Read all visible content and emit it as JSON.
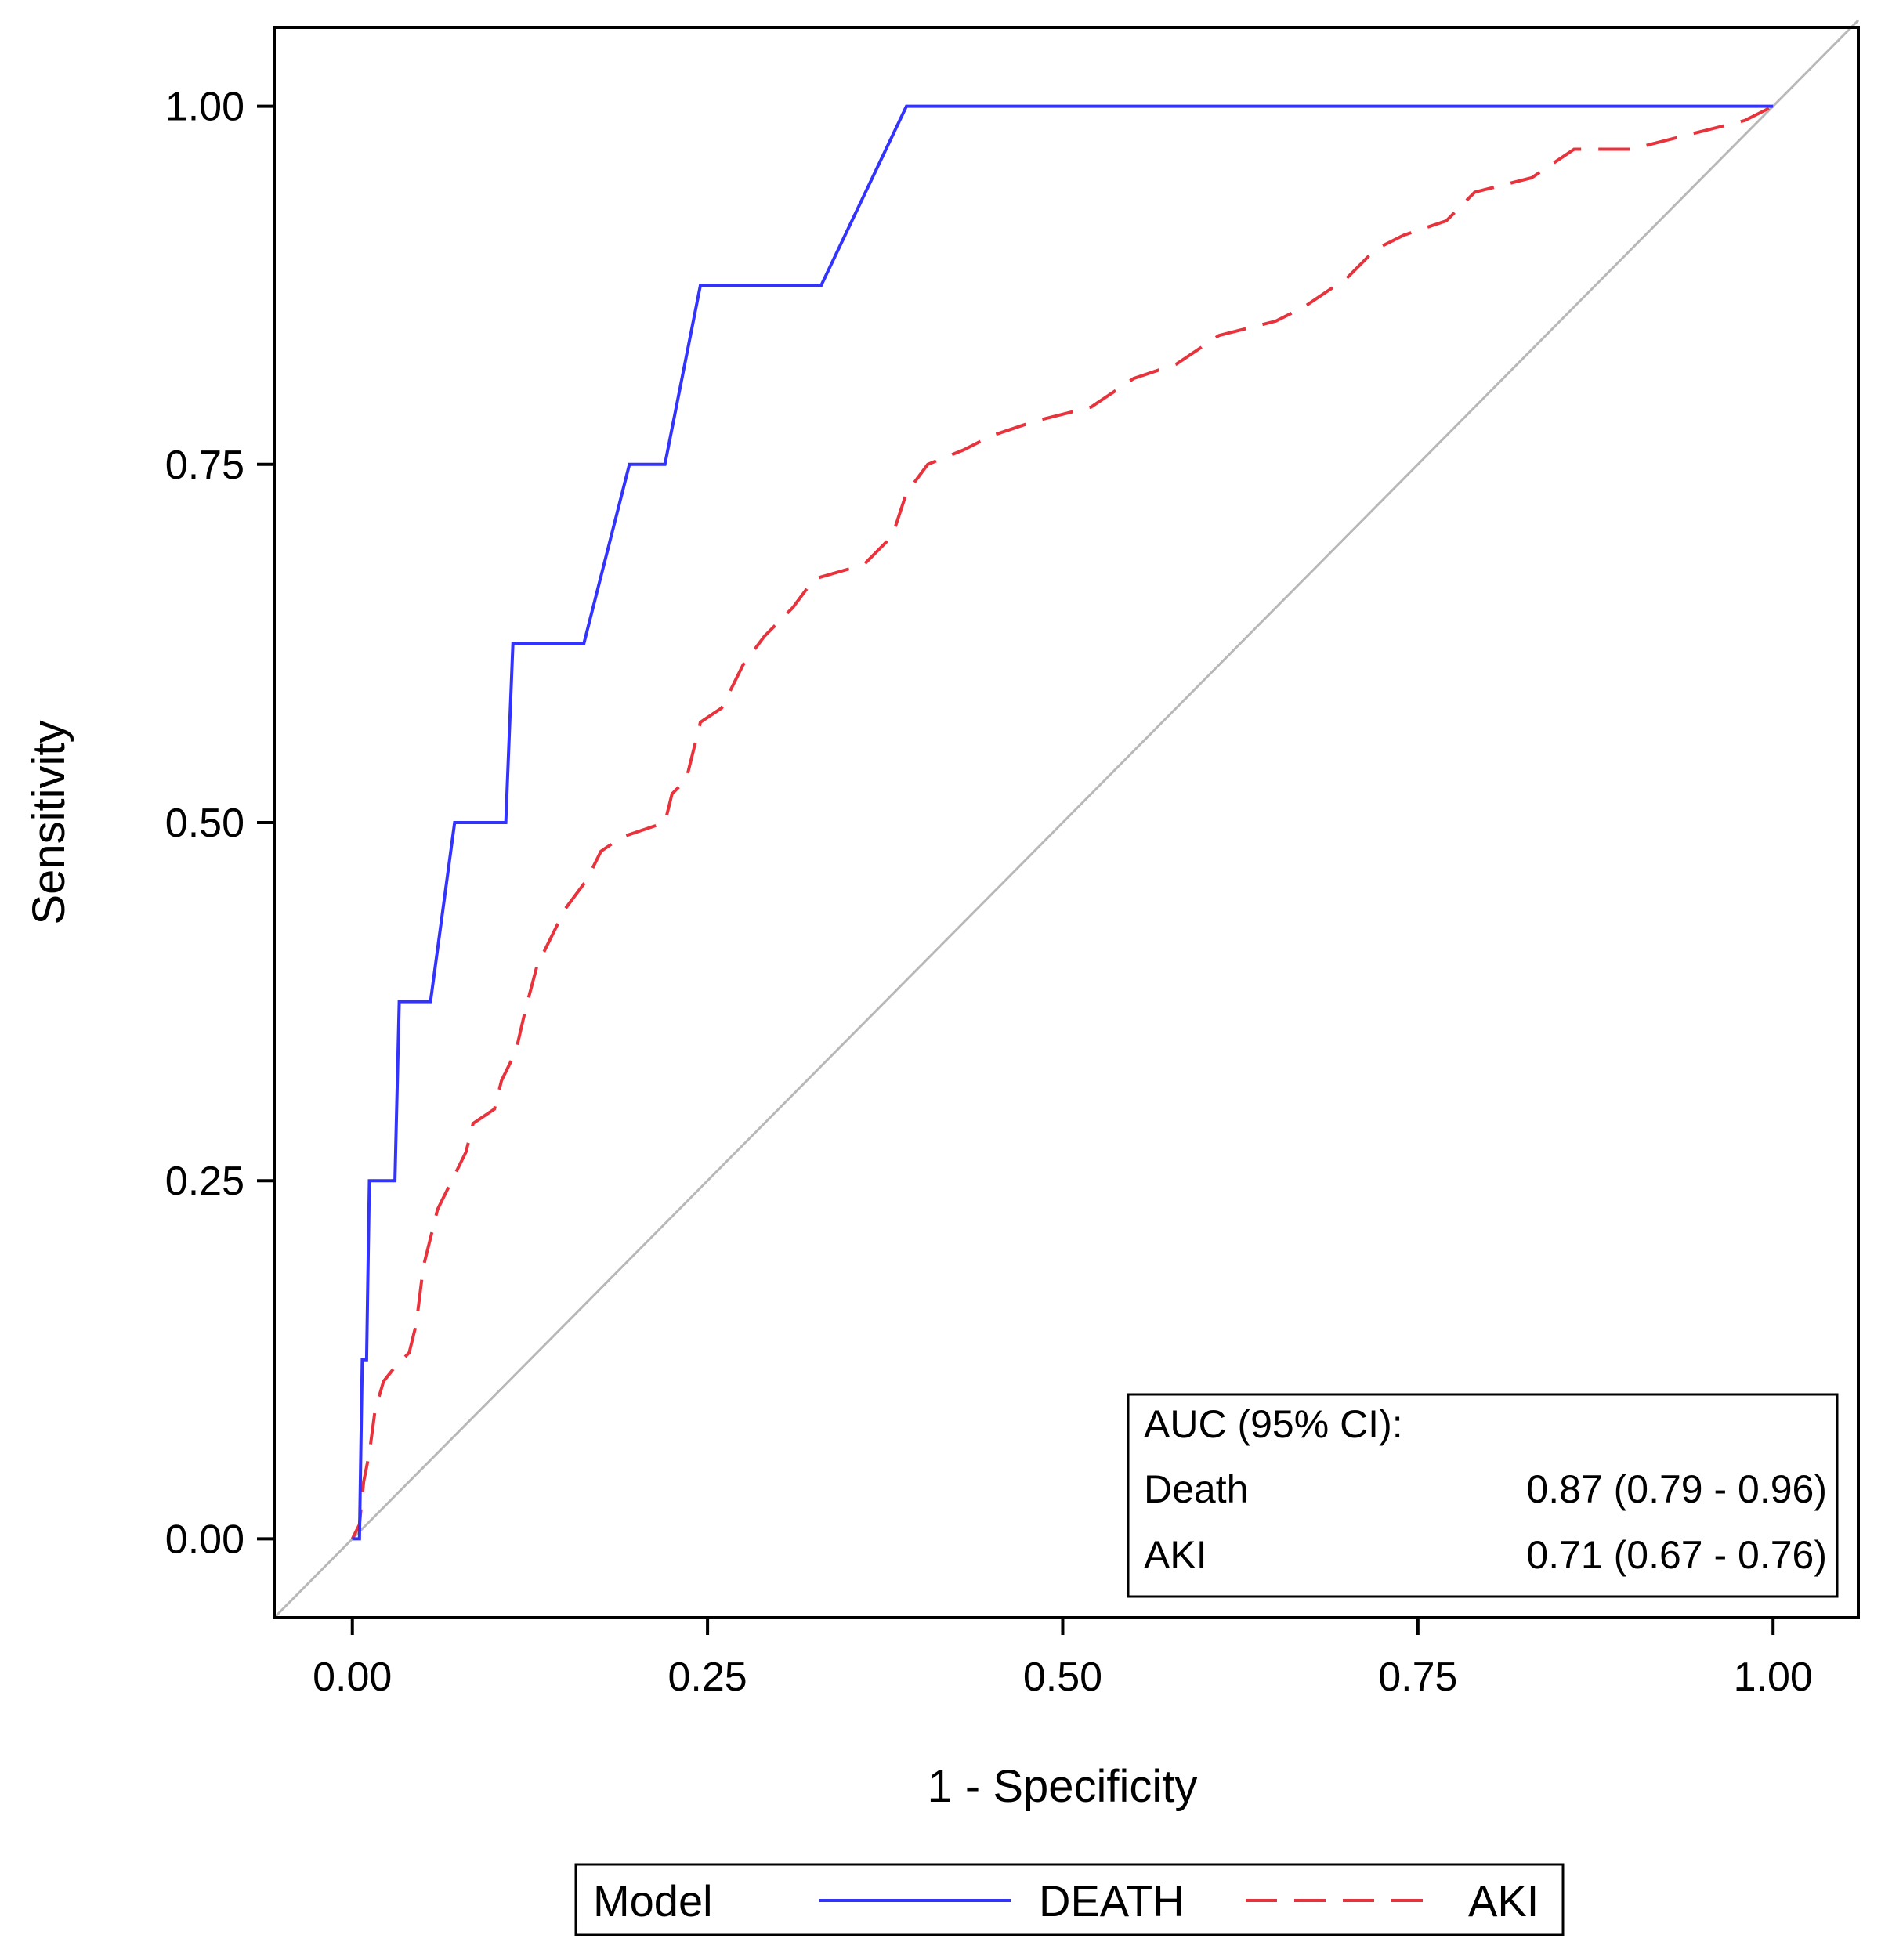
{
  "colors": {
    "death": "#3333ff",
    "aki": "#e8323c",
    "reference": "#b8b8b8",
    "axis": "#000000",
    "background": "#ffffff"
  },
  "chart_data": {
    "type": "line",
    "title": "",
    "xlabel": "1 - Specificity",
    "ylabel": "Sensitivity",
    "xlim": [
      -0.055,
      1.06
    ],
    "ylim": [
      -0.055,
      1.055
    ],
    "xticks": [
      0,
      0.25,
      0.5,
      0.75,
      1
    ],
    "yticks": [
      0,
      0.25,
      0.5,
      0.75,
      1
    ],
    "xtick_labels": [
      "0.00",
      "0.25",
      "0.50",
      "0.75",
      "1.00"
    ],
    "ytick_labels": [
      "0.00",
      "0.25",
      "0.50",
      "0.75",
      "1.00"
    ],
    "grid": false,
    "series": [
      {
        "name": "DEATH",
        "style": "solid",
        "points": [
          [
            0,
            0
          ],
          [
            0.005,
            0
          ],
          [
            0.007,
            0.125
          ],
          [
            0.01,
            0.125
          ],
          [
            0.012,
            0.25
          ],
          [
            0.03,
            0.25
          ],
          [
            0.033,
            0.375
          ],
          [
            0.055,
            0.375
          ],
          [
            0.072,
            0.5
          ],
          [
            0.108,
            0.5
          ],
          [
            0.113,
            0.625
          ],
          [
            0.163,
            0.625
          ],
          [
            0.195,
            0.75
          ],
          [
            0.22,
            0.75
          ],
          [
            0.245,
            0.875
          ],
          [
            0.33,
            0.875
          ],
          [
            0.39,
            1
          ],
          [
            1,
            1
          ]
        ]
      },
      {
        "name": "AKI",
        "style": "dashed",
        "points": [
          [
            0,
            0
          ],
          [
            0.005,
            0.01
          ],
          [
            0.008,
            0.04
          ],
          [
            0.012,
            0.06
          ],
          [
            0.016,
            0.09
          ],
          [
            0.022,
            0.11
          ],
          [
            0.03,
            0.12
          ],
          [
            0.04,
            0.13
          ],
          [
            0.045,
            0.15
          ],
          [
            0.05,
            0.19
          ],
          [
            0.055,
            0.21
          ],
          [
            0.06,
            0.23
          ],
          [
            0.07,
            0.25
          ],
          [
            0.08,
            0.27
          ],
          [
            0.085,
            0.29
          ],
          [
            0.1,
            0.3
          ],
          [
            0.105,
            0.32
          ],
          [
            0.115,
            0.34
          ],
          [
            0.122,
            0.37
          ],
          [
            0.13,
            0.4
          ],
          [
            0.14,
            0.42
          ],
          [
            0.15,
            0.44
          ],
          [
            0.165,
            0.46
          ],
          [
            0.175,
            0.48
          ],
          [
            0.19,
            0.49
          ],
          [
            0.22,
            0.5
          ],
          [
            0.225,
            0.52
          ],
          [
            0.235,
            0.53
          ],
          [
            0.245,
            0.57
          ],
          [
            0.26,
            0.58
          ],
          [
            0.275,
            0.61
          ],
          [
            0.29,
            0.63
          ],
          [
            0.31,
            0.65
          ],
          [
            0.325,
            0.67
          ],
          [
            0.36,
            0.68
          ],
          [
            0.38,
            0.7
          ],
          [
            0.39,
            0.73
          ],
          [
            0.405,
            0.75
          ],
          [
            0.43,
            0.76
          ],
          [
            0.45,
            0.77
          ],
          [
            0.48,
            0.78
          ],
          [
            0.52,
            0.79
          ],
          [
            0.55,
            0.81
          ],
          [
            0.58,
            0.82
          ],
          [
            0.61,
            0.84
          ],
          [
            0.65,
            0.85
          ],
          [
            0.67,
            0.86
          ],
          [
            0.7,
            0.88
          ],
          [
            0.72,
            0.9
          ],
          [
            0.74,
            0.91
          ],
          [
            0.77,
            0.92
          ],
          [
            0.79,
            0.94
          ],
          [
            0.83,
            0.95
          ],
          [
            0.86,
            0.97
          ],
          [
            0.9,
            0.97
          ],
          [
            0.94,
            0.98
          ],
          [
            0.98,
            0.99
          ],
          [
            1,
            1
          ]
        ]
      }
    ],
    "reference_line": [
      [
        -0.055,
        -0.055
      ],
      [
        1.06,
        1.06
      ]
    ],
    "inset": {
      "title": "AUC (95% CI):",
      "rows": [
        {
          "label": "Death",
          "value": "0.87 (0.79 - 0.96)"
        },
        {
          "label": "AKI",
          "value": "0.71 (0.67 - 0.76)"
        }
      ],
      "placement": "bottom-right"
    },
    "legend": {
      "title": "Model",
      "entries": [
        "DEATH",
        "AKI"
      ],
      "placement": "bottom-center"
    }
  }
}
